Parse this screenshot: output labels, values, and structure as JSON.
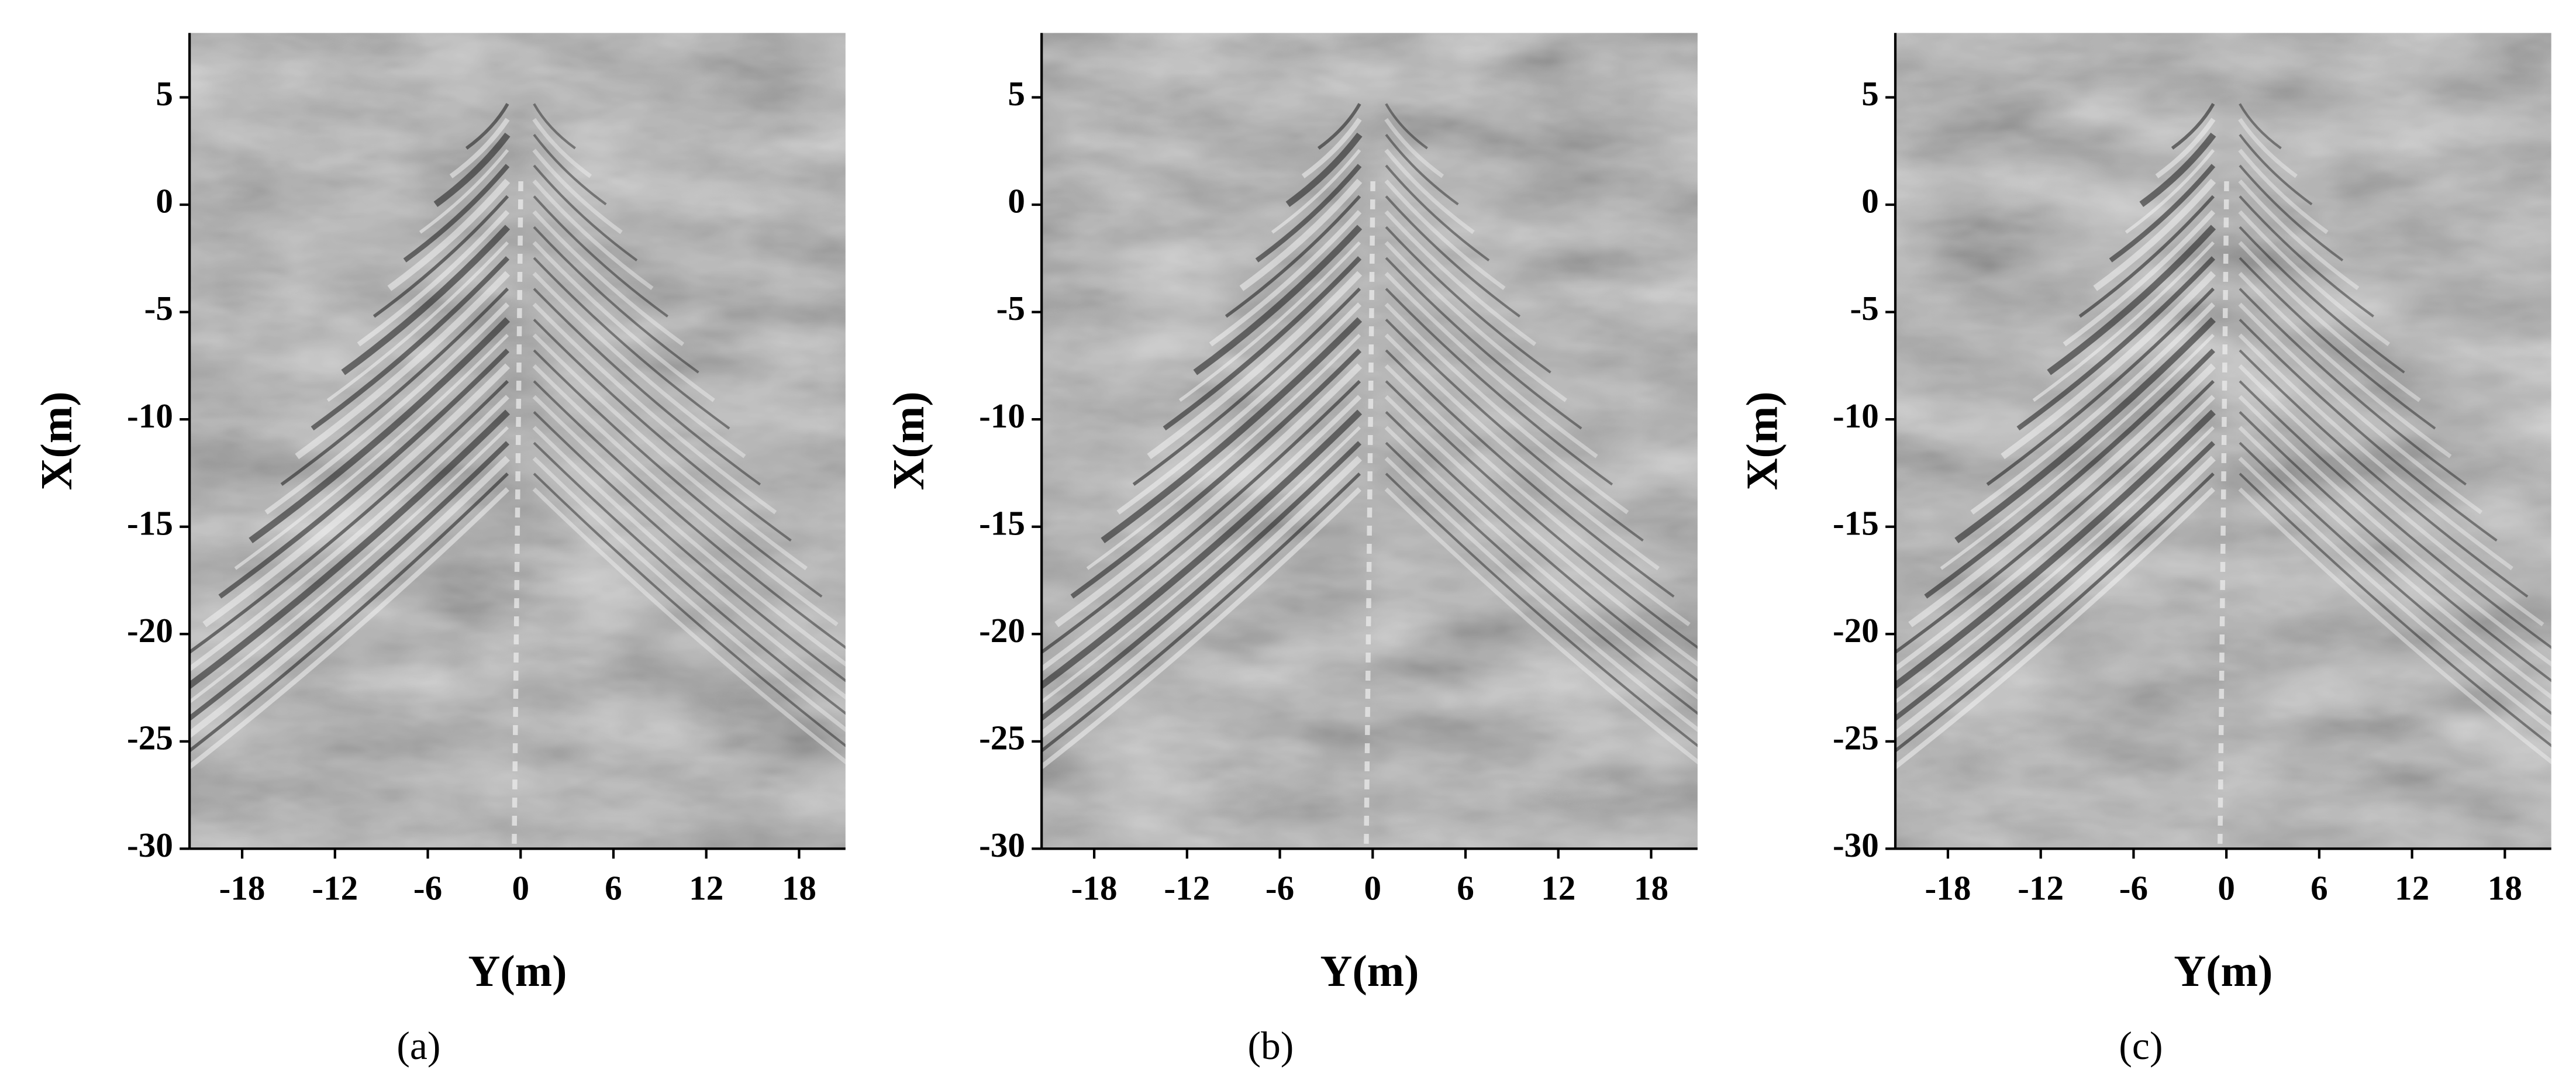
{
  "chart_data": [
    {
      "type": "image",
      "caption": "(a)",
      "xlabel": "Y(m)",
      "ylabel": "X(m)",
      "xlim": [
        -21.4,
        21
      ],
      "ylim": [
        -30,
        8
      ],
      "xticks": [
        -18,
        -12,
        -6,
        0,
        6,
        12,
        18
      ],
      "yticks": [
        -30,
        -25,
        -20,
        -15,
        -10,
        -5,
        0,
        5
      ]
    },
    {
      "type": "image",
      "caption": "(b)",
      "xlabel": "Y(m)",
      "ylabel": "X(m)",
      "xlim": [
        -21.4,
        21
      ],
      "ylim": [
        -30,
        8
      ],
      "xticks": [
        -18,
        -12,
        -6,
        0,
        6,
        12,
        18
      ],
      "yticks": [
        -30,
        -25,
        -20,
        -15,
        -10,
        -5,
        0,
        5
      ]
    },
    {
      "type": "image",
      "caption": "(c)",
      "xlabel": "Y(m)",
      "ylabel": "X(m)",
      "xlim": [
        -21.4,
        21
      ],
      "ylim": [
        -30,
        8
      ],
      "xticks": [
        -18,
        -12,
        -6,
        0,
        6,
        12,
        18
      ],
      "yticks": [
        -30,
        -25,
        -20,
        -15,
        -10,
        -5,
        0,
        5
      ]
    }
  ]
}
